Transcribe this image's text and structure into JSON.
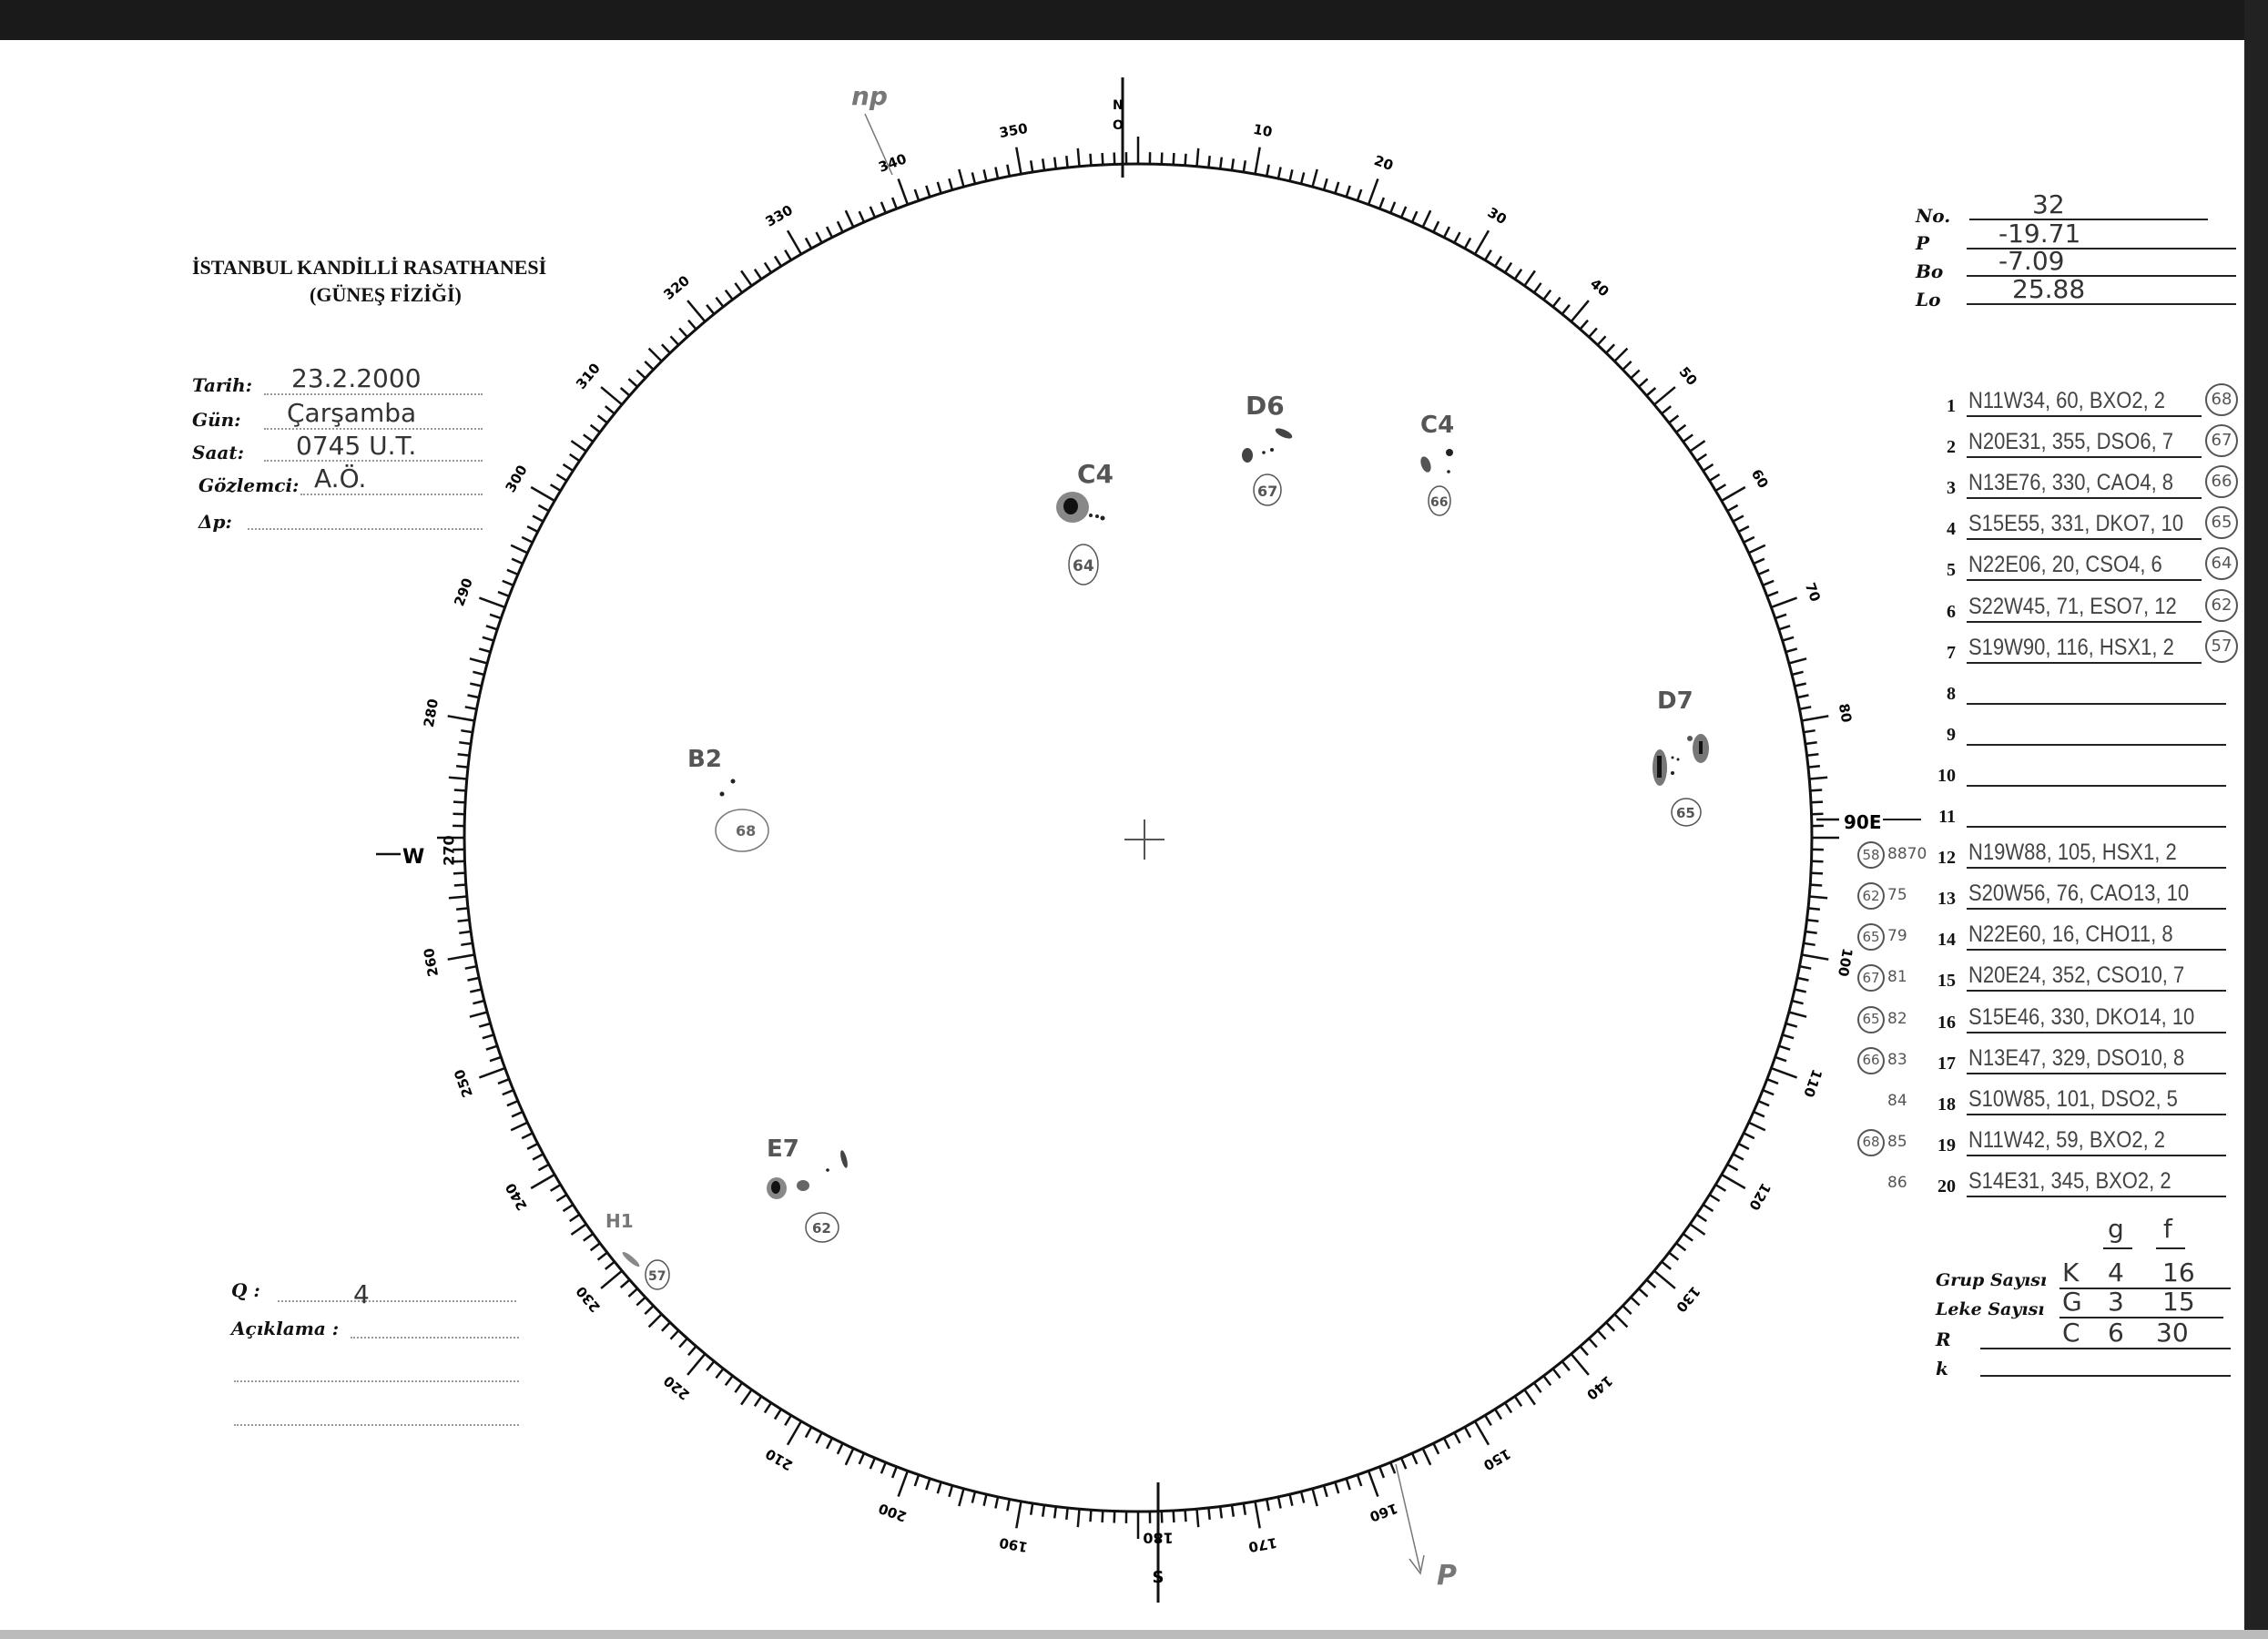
{
  "header": {
    "institution": "İSTANBUL KANDİLLİ RASATHANESİ",
    "department": "(GÜNEŞ FİZİĞİ)"
  },
  "observation": {
    "tarih_label": "Tarih:",
    "tarih": "23.2.2000",
    "gun_label": "Gün:",
    "gun": "Çarşamba",
    "saat_label": "Saat:",
    "saat": "0745 U.T.",
    "gozlemci_label": "Gözlemci:",
    "gozlemci": "A.Ö.",
    "dp_label": "Δp:",
    "dp": ""
  },
  "params": {
    "no_label": "No.",
    "no": "32",
    "p_label": "P",
    "p": "-19.71",
    "bo_label": "Bo",
    "bo": "-7.09",
    "lo_label": "Lo",
    "lo": "25.88"
  },
  "groups": [
    {
      "n": "1",
      "entry": "N11W34, 60, BXO2, 2",
      "circled": "68"
    },
    {
      "n": "2",
      "entry": "N20E31, 355, DSO6, 7",
      "circled": "67"
    },
    {
      "n": "3",
      "entry": "N13E76, 330, CAO4, 8",
      "circled": "66"
    },
    {
      "n": "4",
      "entry": "S15E55, 331, DKO7, 10",
      "circled": "65"
    },
    {
      "n": "5",
      "entry": "N22E06, 20, CSO4, 6",
      "circled": "64"
    },
    {
      "n": "6",
      "entry": "S22W45, 71, ESO7, 12",
      "circled": "62"
    },
    {
      "n": "7",
      "entry": "S19W90, 116, HSX1, 2",
      "circled": "57"
    },
    {
      "n": "8",
      "entry": ""
    },
    {
      "n": "9",
      "entry": ""
    },
    {
      "n": "10",
      "entry": ""
    },
    {
      "n": "11",
      "entry": ""
    },
    {
      "n": "12",
      "entry": "N19W88, 105, HSX1, 2",
      "left_circled": "58",
      "noaa": "8870"
    },
    {
      "n": "13",
      "entry": "S20W56, 76, CAO13, 10",
      "left_circled": "62",
      "noaa": "75"
    },
    {
      "n": "14",
      "entry": "N22E60, 16, CHO11, 8",
      "left_circled": "65",
      "noaa": "79"
    },
    {
      "n": "15",
      "entry": "N20E24, 352, CSO10, 7",
      "left_circled": "67",
      "noaa": "81"
    },
    {
      "n": "16",
      "entry": "S15E46, 330, DKO14, 10",
      "left_circled": "65",
      "noaa": "82"
    },
    {
      "n": "17",
      "entry": "N13E47, 329, DSO10, 8",
      "left_circled": "66",
      "noaa": "83"
    },
    {
      "n": "18",
      "entry": "S10W85, 101, DSO2, 5",
      "noaa": "84"
    },
    {
      "n": "19",
      "entry": "N11W42, 59, BXO2, 2",
      "left_circled": "68",
      "noaa": "85"
    },
    {
      "n": "20",
      "entry": "S14E31, 345, BXO2, 2",
      "noaa": "86"
    }
  ],
  "counts": {
    "col_g": "g",
    "col_f": "f",
    "grup_label": "Grup Sayısı",
    "grup": [
      "K",
      "4",
      "16"
    ],
    "leke_label": "Leke Sayısı",
    "leke": [
      "G",
      "3",
      "15"
    ],
    "r_label": "R",
    "r": [
      "C",
      "6",
      "30"
    ],
    "k_label": "k",
    "k": ""
  },
  "quality": {
    "q_label": "Q :",
    "q": "4",
    "aciklama_label": "Açıklama :"
  },
  "disk": {
    "north": [
      "N",
      "O"
    ],
    "south": [
      "180",
      "S"
    ],
    "west": [
      "W",
      "270"
    ],
    "east": "90E",
    "np_label": "np",
    "p_label": "P",
    "scale_labels": [
      "10",
      "20",
      "30",
      "40",
      "50",
      "60",
      "70",
      "80",
      "100",
      "110",
      "120",
      "130",
      "140",
      "150",
      "160",
      "170",
      "190",
      "200",
      "210",
      "220",
      "230",
      "240",
      "250",
      "260",
      "280",
      "290",
      "300",
      "310",
      "320",
      "330",
      "340",
      "350"
    ],
    "sunspot_groups": [
      {
        "type": "C4",
        "id": "64"
      },
      {
        "type": "D6",
        "id": "67"
      },
      {
        "type": "C4",
        "id": "66"
      },
      {
        "type": "D7",
        "id": "65"
      },
      {
        "type": "B2",
        "id": "68"
      },
      {
        "type": "E7",
        "id": "62"
      },
      {
        "type": "H1",
        "id": "57"
      }
    ]
  }
}
